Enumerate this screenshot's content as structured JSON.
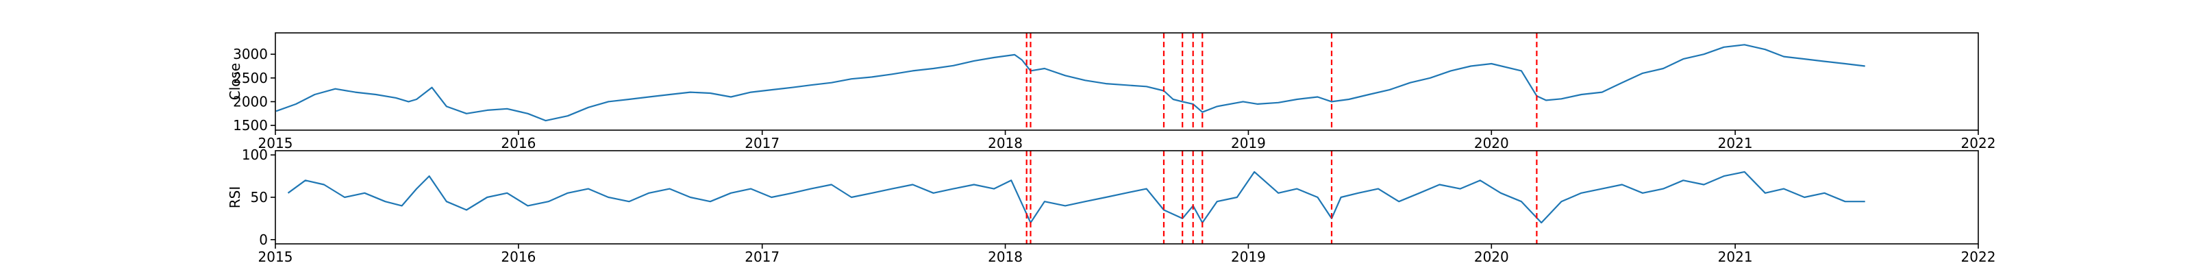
{
  "chart_data": [
    {
      "type": "line",
      "ylabel": "Close",
      "xlim": [
        "2015-01-01",
        "2022-01-01"
      ],
      "ylim": [
        1400,
        3450
      ],
      "yticks": [
        1500,
        2000,
        2500,
        3000
      ],
      "xtick_labels": [
        "2015",
        "2016",
        "2017",
        "2018",
        "2019",
        "2020",
        "2021",
        "2022"
      ],
      "grid": false,
      "line_color": "#1f77b4",
      "vline_color": "#ff0000",
      "vlines": [
        "2018-02-02",
        "2018-02-08",
        "2018-08-27",
        "2018-09-24",
        "2018-10-10",
        "2018-10-24",
        "2019-05-06",
        "2020-03-09"
      ],
      "series": [
        {
          "x": [
            "2015-01-02",
            "2015-02-01",
            "2015-03-01",
            "2015-04-01",
            "2015-05-01",
            "2015-06-01",
            "2015-07-01",
            "2015-07-20",
            "2015-08-01",
            "2015-08-24",
            "2015-09-15",
            "2015-10-15",
            "2015-11-15",
            "2015-12-15",
            "2016-01-15",
            "2016-02-11",
            "2016-03-15",
            "2016-04-15",
            "2016-05-15",
            "2016-06-15",
            "2016-07-15",
            "2016-08-15",
            "2016-09-15",
            "2016-10-15",
            "2016-11-15",
            "2016-12-15",
            "2017-01-15",
            "2017-02-15",
            "2017-03-15",
            "2017-04-15",
            "2017-05-15",
            "2017-06-15",
            "2017-07-15",
            "2017-08-15",
            "2017-09-15",
            "2017-10-15",
            "2017-11-15",
            "2017-12-15",
            "2018-01-15",
            "2018-01-26",
            "2018-02-08",
            "2018-03-01",
            "2018-04-01",
            "2018-05-01",
            "2018-06-01",
            "2018-07-01",
            "2018-08-01",
            "2018-08-27",
            "2018-09-10",
            "2018-09-24",
            "2018-10-10",
            "2018-10-24",
            "2018-11-15",
            "2018-12-24",
            "2019-01-15",
            "2019-02-15",
            "2019-03-15",
            "2019-04-15",
            "2019-05-06",
            "2019-06-01",
            "2019-07-01",
            "2019-08-01",
            "2019-09-01",
            "2019-10-01",
            "2019-11-01",
            "2019-12-01",
            "2020-01-01",
            "2020-02-15",
            "2020-03-09",
            "2020-03-23",
            "2020-04-15",
            "2020-05-15",
            "2020-06-15",
            "2020-07-15",
            "2020-08-15",
            "2020-09-15",
            "2020-10-15",
            "2020-11-15",
            "2020-12-15",
            "2021-01-15",
            "2021-02-15",
            "2021-03-15",
            "2021-04-15",
            "2021-05-15",
            "2021-06-15",
            "2021-07-15"
          ],
          "values": [
            1800,
            1950,
            2150,
            2270,
            2200,
            2150,
            2080,
            2000,
            2050,
            2300,
            1900,
            1750,
            1820,
            1850,
            1750,
            1600,
            1700,
            1880,
            2000,
            2050,
            2100,
            2150,
            2200,
            2180,
            2100,
            2200,
            2250,
            2300,
            2350,
            2400,
            2480,
            2520,
            2580,
            2650,
            2700,
            2760,
            2860,
            2930,
            2990,
            2880,
            2650,
            2700,
            2550,
            2450,
            2380,
            2350,
            2320,
            2230,
            2050,
            2000,
            1950,
            1780,
            1900,
            2000,
            1950,
            1980,
            2050,
            2100,
            2000,
            2050,
            2150,
            2250,
            2400,
            2500,
            2650,
            2750,
            2800,
            2650,
            2120,
            2030,
            2060,
            2150,
            2200,
            2400,
            2600,
            2700,
            2900,
            3000,
            3150,
            3200,
            3100,
            2950,
            2900,
            2850,
            2800,
            2750
          ]
        }
      ]
    },
    {
      "type": "line",
      "ylabel": "RSI",
      "xlim": [
        "2015-01-01",
        "2022-01-01"
      ],
      "ylim": [
        -5,
        105
      ],
      "yticks": [
        0,
        50,
        100
      ],
      "xtick_labels": [
        "2015",
        "2016",
        "2017",
        "2018",
        "2019",
        "2020",
        "2021",
        "2022"
      ],
      "grid": false,
      "line_color": "#1f77b4",
      "vline_color": "#ff0000",
      "vlines": [
        "2018-02-02",
        "2018-02-08",
        "2018-08-27",
        "2018-09-24",
        "2018-10-10",
        "2018-10-24",
        "2019-05-06",
        "2020-03-09"
      ],
      "series": [
        {
          "x": [
            "2015-01-20",
            "2015-02-15",
            "2015-03-15",
            "2015-04-15",
            "2015-05-15",
            "2015-06-15",
            "2015-07-10",
            "2015-08-01",
            "2015-08-20",
            "2015-09-15",
            "2015-10-15",
            "2015-11-15",
            "2015-12-15",
            "2016-01-15",
            "2016-02-15",
            "2016-03-15",
            "2016-04-15",
            "2016-05-15",
            "2016-06-15",
            "2016-07-15",
            "2016-08-15",
            "2016-09-15",
            "2016-10-15",
            "2016-11-15",
            "2016-12-15",
            "2017-01-15",
            "2017-02-15",
            "2017-03-15",
            "2017-04-15",
            "2017-05-15",
            "2017-06-15",
            "2017-07-15",
            "2017-08-15",
            "2017-09-15",
            "2017-10-15",
            "2017-11-15",
            "2017-12-15",
            "2018-01-10",
            "2018-02-08",
            "2018-03-01",
            "2018-04-01",
            "2018-05-01",
            "2018-06-01",
            "2018-07-01",
            "2018-08-01",
            "2018-08-27",
            "2018-09-24",
            "2018-10-10",
            "2018-10-24",
            "2018-11-15",
            "2018-12-15",
            "2019-01-10",
            "2019-02-15",
            "2019-03-15",
            "2019-04-15",
            "2019-05-06",
            "2019-05-20",
            "2019-06-15",
            "2019-07-15",
            "2019-08-15",
            "2019-09-15",
            "2019-10-15",
            "2019-11-15",
            "2019-12-15",
            "2020-01-15",
            "2020-02-15",
            "2020-03-16",
            "2020-04-15",
            "2020-05-15",
            "2020-06-15",
            "2020-07-15",
            "2020-08-15",
            "2020-09-15",
            "2020-10-15",
            "2020-11-15",
            "2020-12-15",
            "2021-01-15",
            "2021-02-15",
            "2021-03-15",
            "2021-04-15",
            "2021-05-15",
            "2021-06-15",
            "2021-07-15"
          ],
          "values": [
            55,
            70,
            65,
            50,
            55,
            45,
            40,
            60,
            75,
            45,
            35,
            50,
            55,
            40,
            45,
            55,
            60,
            50,
            45,
            55,
            60,
            50,
            45,
            55,
            60,
            50,
            55,
            60,
            65,
            50,
            55,
            60,
            65,
            55,
            60,
            65,
            60,
            70,
            20,
            45,
            40,
            45,
            50,
            55,
            60,
            35,
            25,
            40,
            20,
            45,
            50,
            80,
            55,
            60,
            50,
            25,
            50,
            55,
            60,
            45,
            55,
            65,
            60,
            70,
            55,
            45,
            20,
            45,
            55,
            60,
            65,
            55,
            60,
            70,
            65,
            75,
            80,
            55,
            60,
            50,
            55,
            45,
            45
          ]
        }
      ]
    }
  ]
}
